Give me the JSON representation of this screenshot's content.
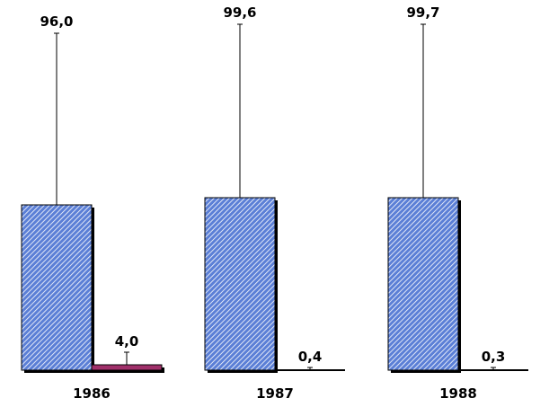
{
  "chart_data": {
    "type": "bar",
    "categories": [
      "1986",
      "1987",
      "1988"
    ],
    "series": [
      {
        "values": [
          96.0,
          99.6,
          99.7
        ],
        "labels": [
          "96,0",
          "99,6",
          "99,7"
        ]
      },
      {
        "values": [
          4.0,
          0.4,
          0.3
        ],
        "labels": [
          "4,0",
          "0,4",
          "0,3"
        ]
      }
    ],
    "ylim": [
      0,
      100
    ],
    "grid": false,
    "legend": "none",
    "colors": {
      "series1_fill": "#5b7fd6",
      "series1_stripe": "#ffffff",
      "series2_fill": "#a0306a",
      "outline": "#000000",
      "shadow": "#000000"
    }
  }
}
